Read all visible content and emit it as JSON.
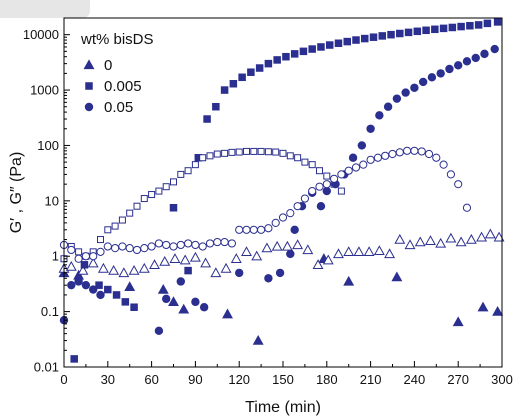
{
  "chart_data": {
    "type": "scatter",
    "title": "",
    "xlabel": "Time (min)",
    "ylabel": "G′ , G″ (Pa)",
    "xlim": [
      0,
      300
    ],
    "ylim": [
      0.01,
      20000
    ],
    "yscale": "log",
    "x_ticks": [
      0,
      30,
      60,
      90,
      120,
      150,
      180,
      210,
      240,
      270,
      300
    ],
    "y_ticks": [
      {
        "value": 0.01,
        "label": "0.01"
      },
      {
        "value": 0.1,
        "label": "0.1"
      },
      {
        "value": 1,
        "label": "1"
      },
      {
        "value": 10,
        "label": "10"
      },
      {
        "value": 100,
        "label": "100"
      },
      {
        "value": 1000,
        "label": "1000"
      },
      {
        "value": 10000,
        "label": "10000"
      }
    ],
    "grid": false,
    "legend_title": "wt% bisDS",
    "legend_position": "top-left",
    "color": "#2b2f8f",
    "series": [
      {
        "name": "0",
        "marker": "triangle",
        "modulus": "G′",
        "filled": true,
        "points": [
          [
            0,
            0.5
          ],
          [
            10,
            0.45
          ],
          [
            45,
            0.28
          ],
          [
            68,
            0.25
          ],
          [
            75,
            0.15
          ],
          [
            82,
            0.11
          ],
          [
            112,
            0.09
          ],
          [
            133,
            0.03
          ],
          [
            178,
            0.9
          ],
          [
            195,
            0.35
          ],
          [
            228,
            0.42
          ],
          [
            270,
            0.065
          ],
          [
            287,
            0.12
          ],
          [
            297,
            0.1
          ]
        ]
      },
      {
        "name": "0",
        "marker": "triangle",
        "modulus": "G″",
        "filled": false,
        "points": [
          [
            0,
            0.6
          ],
          [
            5,
            0.65
          ],
          [
            13,
            0.55
          ],
          [
            20,
            0.75
          ],
          [
            27,
            0.6
          ],
          [
            34,
            0.55
          ],
          [
            41,
            0.5
          ],
          [
            48,
            0.55
          ],
          [
            55,
            0.6
          ],
          [
            62,
            0.7
          ],
          [
            69,
            0.8
          ],
          [
            76,
            0.9
          ],
          [
            83,
            0.85
          ],
          [
            90,
            0.95
          ],
          [
            97,
            0.75
          ],
          [
            104,
            0.5
          ],
          [
            111,
            0.6
          ],
          [
            118,
            0.9
          ],
          [
            125,
            1.2
          ],
          [
            132,
            1.0
          ],
          [
            139,
            1.4
          ],
          [
            146,
            1.5
          ],
          [
            153,
            1.5
          ],
          [
            160,
            1.6
          ],
          [
            167,
            1.3
          ],
          [
            174,
            0.7
          ],
          [
            181,
            0.85
          ],
          [
            188,
            1.1
          ],
          [
            195,
            1.2
          ],
          [
            202,
            1.2
          ],
          [
            209,
            1.2
          ],
          [
            216,
            1.25
          ],
          [
            223,
            1.1
          ],
          [
            230,
            2.0
          ],
          [
            237,
            1.6
          ],
          [
            244,
            1.8
          ],
          [
            251,
            1.9
          ],
          [
            258,
            1.7
          ],
          [
            265,
            2.1
          ],
          [
            272,
            1.8
          ],
          [
            279,
            2.0
          ],
          [
            286,
            2.2
          ],
          [
            292,
            2.5
          ],
          [
            298,
            2.2
          ]
        ]
      },
      {
        "name": "0.005",
        "marker": "square",
        "modulus": "G′",
        "filled": true,
        "points": [
          [
            7,
            0.014
          ],
          [
            14,
            0.7
          ],
          [
            24,
            0.3
          ],
          [
            30,
            0.25
          ],
          [
            36,
            0.2
          ],
          [
            42,
            0.15
          ],
          [
            48,
            0.12
          ],
          [
            75,
            7.5
          ],
          [
            85,
            0.55
          ],
          [
            92,
            60
          ],
          [
            98,
            300
          ],
          [
            104,
            500
          ],
          [
            110,
            1000
          ],
          [
            116,
            1300
          ],
          [
            122,
            1700
          ],
          [
            128,
            2100
          ],
          [
            134,
            2500
          ],
          [
            140,
            3000
          ],
          [
            146,
            3500
          ],
          [
            152,
            4000
          ],
          [
            158,
            4500
          ],
          [
            164,
            5000
          ],
          [
            170,
            5500
          ],
          [
            176,
            6000
          ],
          [
            182,
            6500
          ],
          [
            188,
            7000
          ],
          [
            194,
            7500
          ],
          [
            200,
            8000
          ],
          [
            206,
            8500
          ],
          [
            212,
            9000
          ],
          [
            218,
            9500
          ],
          [
            224,
            10000
          ],
          [
            230,
            10500
          ],
          [
            236,
            11000
          ],
          [
            242,
            11500
          ],
          [
            248,
            12000
          ],
          [
            254,
            12500
          ],
          [
            260,
            13000
          ],
          [
            266,
            13500
          ],
          [
            272,
            14000
          ],
          [
            278,
            14500
          ],
          [
            284,
            15000
          ],
          [
            290,
            16000
          ],
          [
            297,
            17000
          ]
        ]
      },
      {
        "name": "0.005",
        "marker": "square",
        "modulus": "G″",
        "filled": false,
        "points": [
          [
            0,
            0.9
          ],
          [
            5,
            1.5
          ],
          [
            10,
            1.2
          ],
          [
            15,
            1.0
          ],
          [
            20,
            1.2
          ],
          [
            25,
            2.0
          ],
          [
            30,
            3.0
          ],
          [
            35,
            3.5
          ],
          [
            40,
            4.5
          ],
          [
            45,
            6.0
          ],
          [
            50,
            8.0
          ],
          [
            55,
            11
          ],
          [
            60,
            13
          ],
          [
            65,
            15
          ],
          [
            70,
            18
          ],
          [
            75,
            22
          ],
          [
            80,
            30
          ],
          [
            85,
            35
          ],
          [
            90,
            45
          ],
          [
            95,
            60
          ],
          [
            100,
            65
          ],
          [
            105,
            70
          ],
          [
            110,
            72
          ],
          [
            115,
            75
          ],
          [
            120,
            76
          ],
          [
            125,
            78
          ],
          [
            130,
            78
          ],
          [
            135,
            78
          ],
          [
            140,
            77
          ],
          [
            145,
            76
          ],
          [
            150,
            72
          ],
          [
            155,
            65
          ],
          [
            160,
            60
          ],
          [
            165,
            50
          ],
          [
            170,
            45
          ],
          [
            175,
            35
          ],
          [
            180,
            28
          ],
          [
            185,
            20
          ],
          [
            190,
            15
          ]
        ]
      },
      {
        "name": "0.05",
        "marker": "circle",
        "modulus": "G′",
        "filled": true,
        "points": [
          [
            0,
            0.07
          ],
          [
            5,
            0.3
          ],
          [
            10,
            0.35
          ],
          [
            15,
            0.3
          ],
          [
            20,
            0.25
          ],
          [
            25,
            0.2
          ],
          [
            65,
            0.045
          ],
          [
            70,
            0.17
          ],
          [
            80,
            0.35
          ],
          [
            90,
            0.15
          ],
          [
            96,
            0.12
          ],
          [
            120,
            0.5
          ],
          [
            140,
            0.4
          ],
          [
            148,
            0.5
          ],
          [
            155,
            1.1
          ],
          [
            158,
            3.0
          ],
          [
            163,
            8.0
          ],
          [
            170,
            14
          ],
          [
            176,
            8.0
          ],
          [
            180,
            15
          ],
          [
            186,
            20
          ],
          [
            192,
            30
          ],
          [
            198,
            60
          ],
          [
            204,
            100
          ],
          [
            210,
            200
          ],
          [
            216,
            350
          ],
          [
            222,
            500
          ],
          [
            228,
            700
          ],
          [
            234,
            900
          ],
          [
            240,
            1100
          ],
          [
            246,
            1400
          ],
          [
            252,
            1700
          ],
          [
            258,
            2000
          ],
          [
            264,
            2400
          ],
          [
            270,
            2800
          ],
          [
            276,
            3300
          ],
          [
            282,
            3800
          ],
          [
            288,
            4500
          ],
          [
            295,
            5500
          ]
        ]
      },
      {
        "name": "0.05",
        "marker": "circle",
        "modulus": "G″",
        "filled": false,
        "points": [
          [
            0,
            1.6
          ],
          [
            5,
            1.3
          ],
          [
            10,
            0.9
          ],
          [
            15,
            1.0
          ],
          [
            20,
            1.0
          ],
          [
            25,
            1.2
          ],
          [
            30,
            1.5
          ],
          [
            35,
            1.4
          ],
          [
            40,
            1.5
          ],
          [
            45,
            1.4
          ],
          [
            50,
            1.3
          ],
          [
            55,
            1.4
          ],
          [
            60,
            1.5
          ],
          [
            65,
            1.7
          ],
          [
            70,
            1.6
          ],
          [
            75,
            1.5
          ],
          [
            80,
            1.6
          ],
          [
            85,
            1.7
          ],
          [
            90,
            1.6
          ],
          [
            95,
            1.5
          ],
          [
            100,
            1.7
          ],
          [
            105,
            1.8
          ],
          [
            110,
            1.8
          ],
          [
            115,
            1.7
          ],
          [
            120,
            3.0
          ],
          [
            125,
            3.0
          ],
          [
            130,
            3.0
          ],
          [
            135,
            3.0
          ],
          [
            140,
            3.2
          ],
          [
            145,
            4.0
          ],
          [
            150,
            5.0
          ],
          [
            155,
            6.0
          ],
          [
            160,
            8.0
          ],
          [
            165,
            11
          ],
          [
            170,
            15
          ],
          [
            175,
            18
          ],
          [
            180,
            20
          ],
          [
            185,
            25
          ],
          [
            190,
            30
          ],
          [
            195,
            35
          ],
          [
            200,
            40
          ],
          [
            205,
            45
          ],
          [
            210,
            55
          ],
          [
            215,
            60
          ],
          [
            220,
            65
          ],
          [
            225,
            70
          ],
          [
            230,
            75
          ],
          [
            235,
            80
          ],
          [
            240,
            80
          ],
          [
            245,
            78
          ],
          [
            250,
            70
          ],
          [
            255,
            60
          ],
          [
            260,
            45
          ],
          [
            265,
            30
          ],
          [
            270,
            20
          ],
          [
            276,
            7.5
          ]
        ]
      }
    ]
  }
}
